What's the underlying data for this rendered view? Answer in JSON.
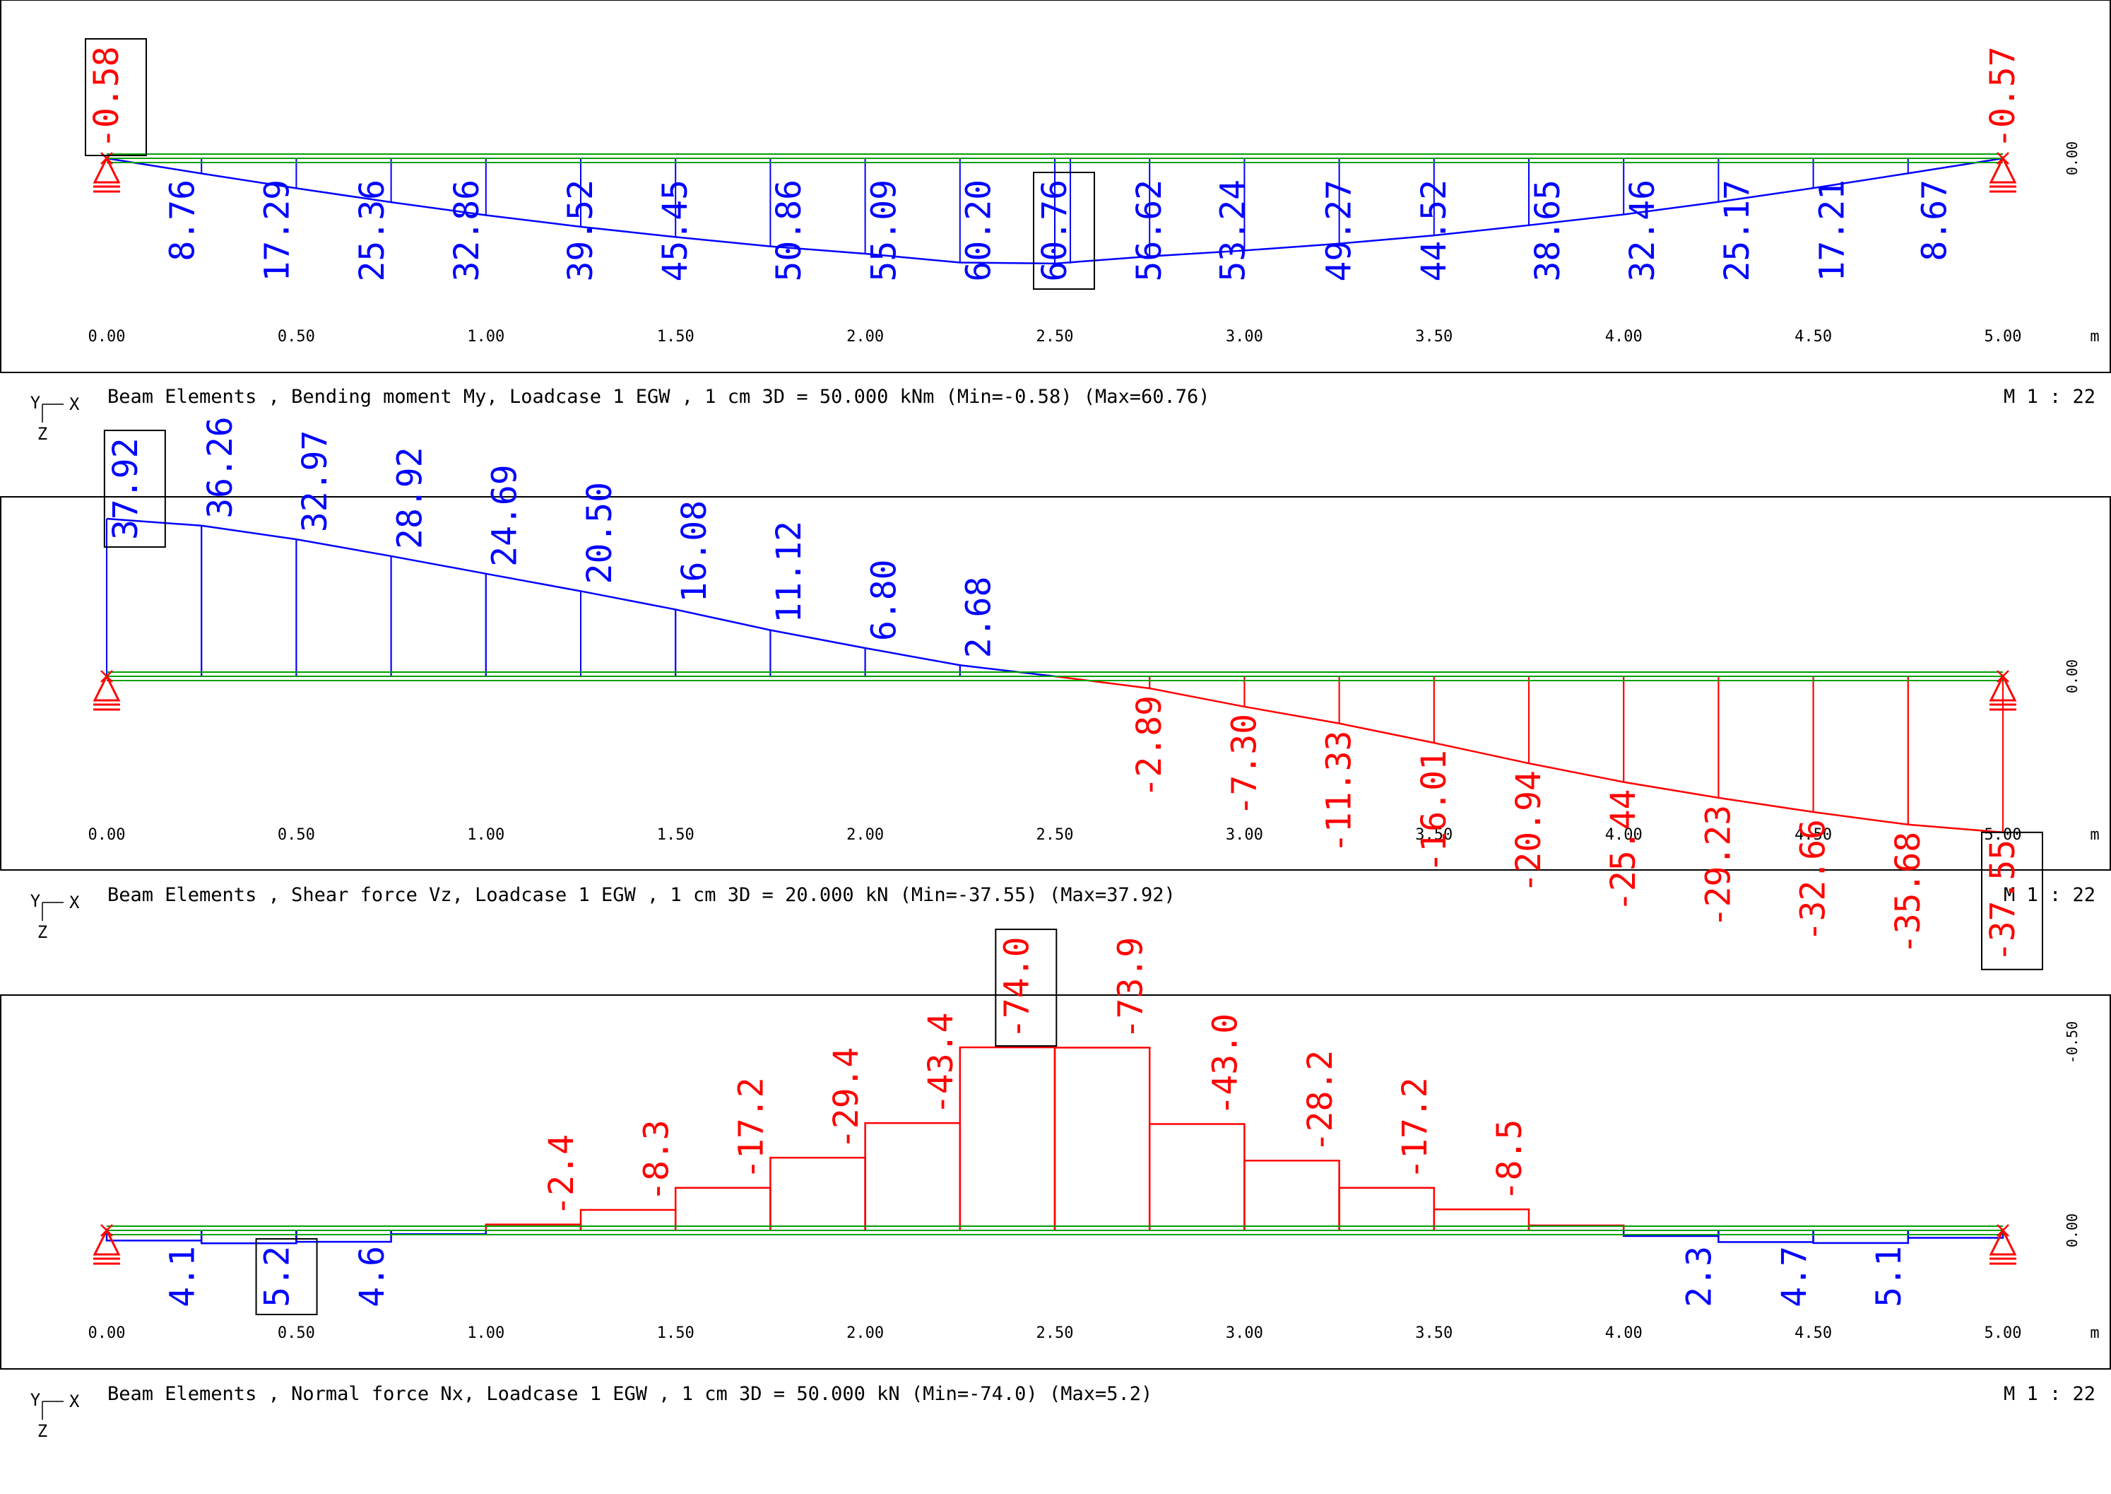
{
  "chart_data": [
    {
      "type": "area",
      "title": "Beam Elements , Bending moment My, Loadcase 1  EGW   , 1 cm 3D =  50.000 kNm (Min=-0.58) (Max=60.76)",
      "scale_label": "M 1 : 22",
      "xlabel": "m",
      "x_ticks": [
        "0.00",
        "0.50",
        "1.00",
        "1.50",
        "2.00",
        "2.50",
        "3.00",
        "3.50",
        "4.00",
        "4.50",
        "5.00"
      ],
      "ref_label": "0.00",
      "axis_x": "X",
      "axis_y": "Y",
      "axis_z": "Z",
      "min_label": "-0.58",
      "max_label": "60.76",
      "series": [
        {
          "name": "positive",
          "color": "#0000ff",
          "x": [
            0,
            0.25,
            0.5,
            0.75,
            1.0,
            1.25,
            1.5,
            1.75,
            2.0,
            2.25,
            2.5,
            2.75,
            3.0,
            3.25,
            3.5,
            3.75,
            4.0,
            4.25,
            4.5,
            4.75,
            5.0
          ],
          "values": [
            0,
            8.76,
            17.29,
            25.36,
            32.86,
            39.52,
            45.45,
            50.86,
            55.09,
            60.2,
            60.76,
            56.62,
            53.24,
            49.27,
            44.52,
            38.65,
            32.46,
            25.17,
            17.21,
            8.67,
            0
          ]
        }
      ],
      "points": [
        {
          "x": 0.0,
          "value": "-0.58",
          "sign": "neg",
          "boxed": true
        },
        {
          "x": 5.0,
          "value": "-0.57",
          "sign": "neg",
          "boxed": false
        },
        {
          "x": 0.2,
          "value": "8.76",
          "sign": "pos",
          "boxed": false
        },
        {
          "x": 0.45,
          "value": "17.29",
          "sign": "pos",
          "boxed": false
        },
        {
          "x": 0.7,
          "value": "25.36",
          "sign": "pos",
          "boxed": false
        },
        {
          "x": 0.95,
          "value": "32.86",
          "sign": "pos",
          "boxed": false
        },
        {
          "x": 1.25,
          "value": "39.52",
          "sign": "pos",
          "boxed": false
        },
        {
          "x": 1.5,
          "value": "45.45",
          "sign": "pos",
          "boxed": false
        },
        {
          "x": 1.8,
          "value": "50.86",
          "sign": "pos",
          "boxed": false
        },
        {
          "x": 2.05,
          "value": "55.09",
          "sign": "pos",
          "boxed": false
        },
        {
          "x": 2.3,
          "value": "60.20",
          "sign": "pos",
          "boxed": false
        },
        {
          "x": 2.5,
          "value": "60.76",
          "sign": "pos",
          "boxed": true
        },
        {
          "x": 2.75,
          "value": "56.62",
          "sign": "pos",
          "boxed": false
        },
        {
          "x": 2.97,
          "value": "53.24",
          "sign": "pos",
          "boxed": false
        },
        {
          "x": 3.25,
          "value": "49.27",
          "sign": "pos",
          "boxed": false
        },
        {
          "x": 3.5,
          "value": "44.52",
          "sign": "pos",
          "boxed": false
        },
        {
          "x": 3.8,
          "value": "38.65",
          "sign": "pos",
          "boxed": false
        },
        {
          "x": 4.05,
          "value": "32.46",
          "sign": "pos",
          "boxed": false
        },
        {
          "x": 4.3,
          "value": "25.17",
          "sign": "pos",
          "boxed": false
        },
        {
          "x": 4.55,
          "value": "17.21",
          "sign": "pos",
          "boxed": false
        },
        {
          "x": 4.82,
          "value": "8.67",
          "sign": "pos",
          "boxed": false
        }
      ]
    },
    {
      "type": "area",
      "title": "Beam Elements , Shear force Vz, Loadcase 1  EGW   , 1 cm 3D =  20.000 kN (Min=-37.55) (Max=37.92)",
      "scale_label": "M 1 : 22",
      "xlabel": "m",
      "x_ticks": [
        "0.00",
        "0.50",
        "1.00",
        "1.50",
        "2.00",
        "2.50",
        "3.00",
        "3.50",
        "4.00",
        "4.50",
        "5.00"
      ],
      "ref_label": "0.00",
      "axis_x": "X",
      "axis_y": "Y",
      "axis_z": "Z",
      "min_label": "-37.55",
      "max_label": "37.92",
      "segments": [
        {
          "x0": 0.0,
          "x1": 0.25,
          "v0": 37.92,
          "v1": 36.26
        },
        {
          "x0": 0.25,
          "x1": 0.5,
          "v0": 36.26,
          "v1": 32.97
        },
        {
          "x0": 0.5,
          "x1": 0.75,
          "v0": 32.97,
          "v1": 28.92
        },
        {
          "x0": 0.75,
          "x1": 1.0,
          "v0": 28.92,
          "v1": 24.69
        },
        {
          "x0": 1.0,
          "x1": 1.25,
          "v0": 24.69,
          "v1": 20.5
        },
        {
          "x0": 1.25,
          "x1": 1.5,
          "v0": 20.5,
          "v1": 16.08
        },
        {
          "x0": 1.5,
          "x1": 1.75,
          "v0": 16.08,
          "v1": 11.12
        },
        {
          "x0": 1.75,
          "x1": 2.0,
          "v0": 11.12,
          "v1": 6.8
        },
        {
          "x0": 2.0,
          "x1": 2.25,
          "v0": 6.8,
          "v1": 2.68
        },
        {
          "x0": 2.25,
          "x1": 2.5,
          "v0": 2.68,
          "v1": 0.0
        },
        {
          "x0": 2.5,
          "x1": 2.75,
          "v0": 0.0,
          "v1": -2.89
        },
        {
          "x0": 2.75,
          "x1": 3.0,
          "v0": -2.89,
          "v1": -7.3
        },
        {
          "x0": 3.0,
          "x1": 3.25,
          "v0": -7.3,
          "v1": -11.33
        },
        {
          "x0": 3.25,
          "x1": 3.5,
          "v0": -11.33,
          "v1": -16.01
        },
        {
          "x0": 3.5,
          "x1": 3.75,
          "v0": -16.01,
          "v1": -20.94
        },
        {
          "x0": 3.75,
          "x1": 4.0,
          "v0": -20.94,
          "v1": -25.44
        },
        {
          "x0": 4.0,
          "x1": 4.25,
          "v0": -25.44,
          "v1": -29.23
        },
        {
          "x0": 4.25,
          "x1": 4.5,
          "v0": -29.23,
          "v1": -32.66
        },
        {
          "x0": 4.5,
          "x1": 4.75,
          "v0": -32.66,
          "v1": -35.68
        },
        {
          "x0": 4.75,
          "x1": 5.0,
          "v0": -35.68,
          "v1": -37.55
        }
      ],
      "points": [
        {
          "x": 0.05,
          "value": "37.92",
          "sign": "pos",
          "boxed": true
        },
        {
          "x": 0.3,
          "value": "36.26",
          "sign": "pos",
          "boxed": false
        },
        {
          "x": 0.55,
          "value": "32.97",
          "sign": "pos",
          "boxed": false
        },
        {
          "x": 0.8,
          "value": "28.92",
          "sign": "pos",
          "boxed": false
        },
        {
          "x": 1.05,
          "value": "24.69",
          "sign": "pos",
          "boxed": false
        },
        {
          "x": 1.3,
          "value": "20.50",
          "sign": "pos",
          "boxed": false
        },
        {
          "x": 1.55,
          "value": "16.08",
          "sign": "pos",
          "boxed": false
        },
        {
          "x": 1.8,
          "value": "11.12",
          "sign": "pos",
          "boxed": false
        },
        {
          "x": 2.05,
          "value": "6.80",
          "sign": "pos",
          "boxed": false
        },
        {
          "x": 2.3,
          "value": "2.68",
          "sign": "pos",
          "boxed": false
        },
        {
          "x": 2.75,
          "value": "-2.89",
          "sign": "neg",
          "boxed": false
        },
        {
          "x": 3.0,
          "value": "-7.30",
          "sign": "neg",
          "boxed": false
        },
        {
          "x": 3.25,
          "value": "-11.33",
          "sign": "neg",
          "boxed": false
        },
        {
          "x": 3.5,
          "value": "-16.01",
          "sign": "neg",
          "boxed": false
        },
        {
          "x": 3.75,
          "value": "-20.94",
          "sign": "neg",
          "boxed": false
        },
        {
          "x": 4.0,
          "value": "-25.44",
          "sign": "neg",
          "boxed": false
        },
        {
          "x": 4.25,
          "value": "-29.23",
          "sign": "neg",
          "boxed": false
        },
        {
          "x": 4.5,
          "value": "-32.66",
          "sign": "neg",
          "boxed": false
        },
        {
          "x": 4.75,
          "value": "-35.68",
          "sign": "neg",
          "boxed": false
        },
        {
          "x": 5.0,
          "value": "-37.55",
          "sign": "neg",
          "boxed": true
        }
      ]
    },
    {
      "type": "bar",
      "title": "Beam Elements , Normal force Nx, Loadcase 1  EGW   , 1 cm 3D =  50.000 kN (Min=-74.0) (Max=5.2)",
      "scale_label": "M 1 : 22",
      "xlabel": "m",
      "x_ticks": [
        "0.00",
        "0.50",
        "1.00",
        "1.50",
        "2.00",
        "2.50",
        "3.00",
        "3.50",
        "4.00",
        "4.50",
        "5.00"
      ],
      "ref_labels": [
        "-0.50",
        "0.00"
      ],
      "axis_x": "X",
      "axis_y": "Y",
      "axis_z": "Z",
      "min_label": "-74.0",
      "max_label": "5.2",
      "segments": [
        {
          "x0": 0.0,
          "x1": 0.25,
          "v": 4.1
        },
        {
          "x0": 0.25,
          "x1": 0.5,
          "v": 5.2
        },
        {
          "x0": 0.5,
          "x1": 0.75,
          "v": 4.6
        },
        {
          "x0": 0.75,
          "x1": 1.0,
          "v": 1.5
        },
        {
          "x0": 1.0,
          "x1": 1.25,
          "v": -2.4
        },
        {
          "x0": 1.25,
          "x1": 1.5,
          "v": -8.3
        },
        {
          "x0": 1.5,
          "x1": 1.75,
          "v": -17.2
        },
        {
          "x0": 1.75,
          "x1": 2.0,
          "v": -29.4
        },
        {
          "x0": 2.0,
          "x1": 2.25,
          "v": -43.4
        },
        {
          "x0": 2.25,
          "x1": 2.5,
          "v": -74.0
        },
        {
          "x0": 2.5,
          "x1": 2.75,
          "v": -73.9
        },
        {
          "x0": 2.75,
          "x1": 3.0,
          "v": -43.0
        },
        {
          "x0": 3.0,
          "x1": 3.25,
          "v": -28.2
        },
        {
          "x0": 3.25,
          "x1": 3.5,
          "v": -17.2
        },
        {
          "x0": 3.5,
          "x1": 3.75,
          "v": -8.5
        },
        {
          "x0": 3.75,
          "x1": 4.0,
          "v": -2.0
        },
        {
          "x0": 4.0,
          "x1": 4.25,
          "v": 2.3
        },
        {
          "x0": 4.25,
          "x1": 4.5,
          "v": 4.7
        },
        {
          "x0": 4.5,
          "x1": 4.75,
          "v": 5.1
        },
        {
          "x0": 4.75,
          "x1": 5.0,
          "v": 3.0
        }
      ],
      "points": [
        {
          "x": 0.2,
          "value": "4.1",
          "sign": "pos",
          "boxed": false
        },
        {
          "x": 0.45,
          "value": "5.2",
          "sign": "pos",
          "boxed": true
        },
        {
          "x": 0.7,
          "value": "4.6",
          "sign": "pos",
          "boxed": false
        },
        {
          "x": 1.2,
          "value": "-2.4",
          "sign": "neg",
          "boxed": false
        },
        {
          "x": 1.45,
          "value": "-8.3",
          "sign": "neg",
          "boxed": false
        },
        {
          "x": 1.7,
          "value": "-17.2",
          "sign": "neg",
          "boxed": false
        },
        {
          "x": 1.95,
          "value": "-29.4",
          "sign": "neg",
          "boxed": false
        },
        {
          "x": 2.2,
          "value": "-43.4",
          "sign": "neg",
          "boxed": false
        },
        {
          "x": 2.4,
          "value": "-74.0",
          "sign": "neg",
          "boxed": true
        },
        {
          "x": 2.7,
          "value": "-73.9",
          "sign": "neg",
          "boxed": false
        },
        {
          "x": 2.95,
          "value": "-43.0",
          "sign": "neg",
          "boxed": false
        },
        {
          "x": 3.2,
          "value": "-28.2",
          "sign": "neg",
          "boxed": false
        },
        {
          "x": 3.45,
          "value": "-17.2",
          "sign": "neg",
          "boxed": false
        },
        {
          "x": 3.7,
          "value": "-8.5",
          "sign": "neg",
          "boxed": false
        },
        {
          "x": 4.2,
          "value": "2.3",
          "sign": "pos",
          "boxed": false
        },
        {
          "x": 4.45,
          "value": "4.7",
          "sign": "pos",
          "boxed": false
        },
        {
          "x": 4.7,
          "value": "5.1",
          "sign": "pos",
          "boxed": false
        }
      ]
    }
  ],
  "colors": {
    "positive": "#0000ff",
    "negative": "#ff0000",
    "beam": "#00a000",
    "support": "#ff0000",
    "frame": "#000000"
  }
}
